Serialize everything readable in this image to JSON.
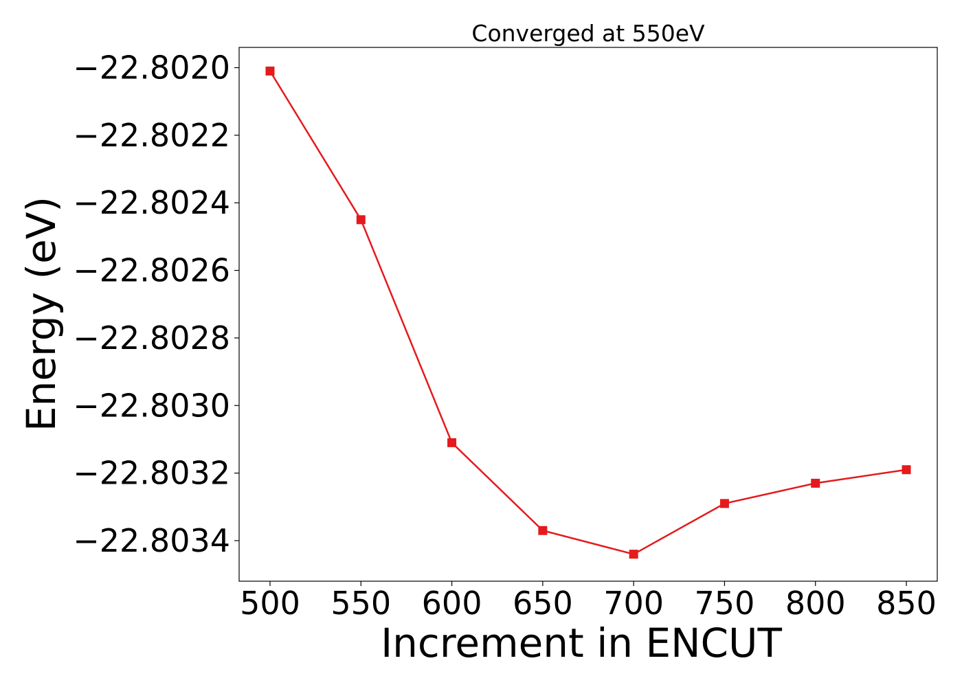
{
  "chart_data": {
    "type": "line",
    "title": "Converged at 550eV",
    "xlabel": "Increment in ENCUT",
    "ylabel": "Energy (eV)",
    "x": [
      500,
      550,
      600,
      650,
      700,
      750,
      800,
      850
    ],
    "series": [
      {
        "values": [
          -22.80201,
          -22.80245,
          -22.80311,
          -22.80337,
          -22.80344,
          -22.80329,
          -22.80323,
          -22.80319
        ],
        "color": "#e41a1c",
        "marker": "square"
      }
    ],
    "xlim": [
      483,
      867
    ],
    "ylim": [
      -22.80352,
      -22.80194
    ],
    "xticks": [
      500,
      550,
      600,
      650,
      700,
      750,
      800,
      850
    ],
    "xtick_labels": [
      "500",
      "550",
      "600",
      "650",
      "700",
      "750",
      "800",
      "850"
    ],
    "yticks": [
      -22.802,
      -22.8022,
      -22.8024,
      -22.8026,
      -22.8028,
      -22.803,
      -22.8032,
      -22.8034
    ],
    "ytick_labels": [
      "−22.8020",
      "−22.8022",
      "−22.8024",
      "−22.8026",
      "−22.8028",
      "−22.8030",
      "−22.8032",
      "−22.8034"
    ],
    "grid": false,
    "legend": "none"
  }
}
